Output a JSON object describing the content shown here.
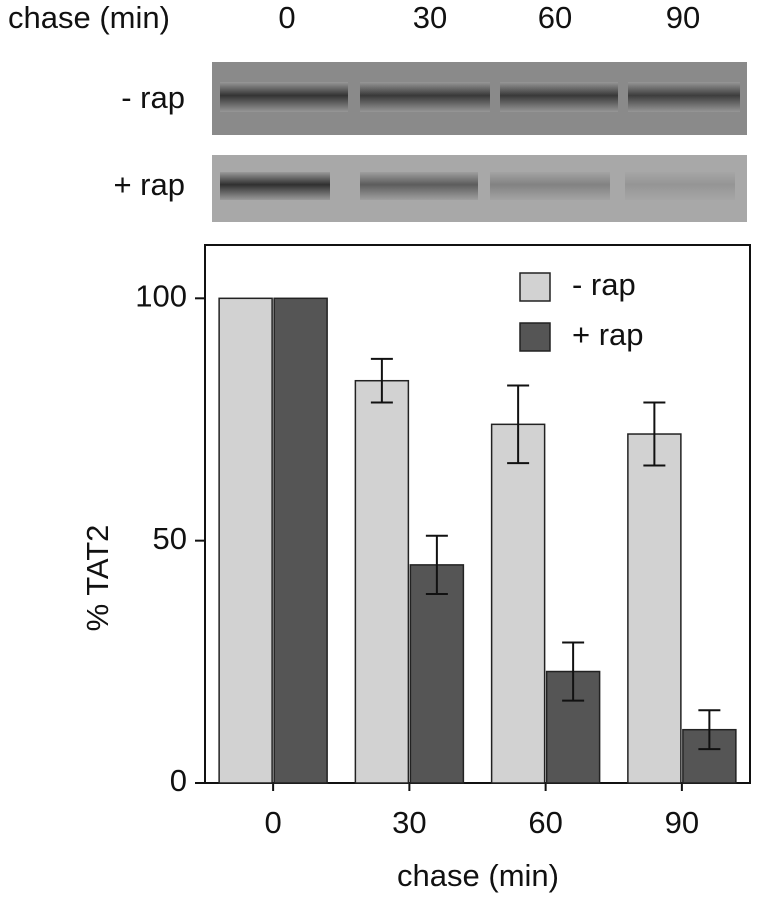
{
  "gel": {
    "header_label": "chase (min)",
    "lanes": [
      "0",
      "30",
      "60",
      "90"
    ],
    "rows": [
      "- rap",
      "+ rap"
    ]
  },
  "chart_data": {
    "type": "bar",
    "xlabel": "chase (min)",
    "ylabel": "% TAT2",
    "categories": [
      "0",
      "30",
      "60",
      "90"
    ],
    "series": [
      {
        "name": "- rap",
        "color": "#d2d2d2",
        "values": [
          100,
          83,
          74,
          72
        ],
        "errors": [
          null,
          4.5,
          8,
          6.5
        ]
      },
      {
        "name": "+ rap",
        "color": "#555555",
        "values": [
          100,
          45,
          23,
          11
        ],
        "errors": [
          null,
          6,
          6,
          4
        ]
      }
    ],
    "ylim": [
      0,
      111
    ],
    "yticks": [
      0,
      50,
      100
    ],
    "legend": "upper right"
  }
}
